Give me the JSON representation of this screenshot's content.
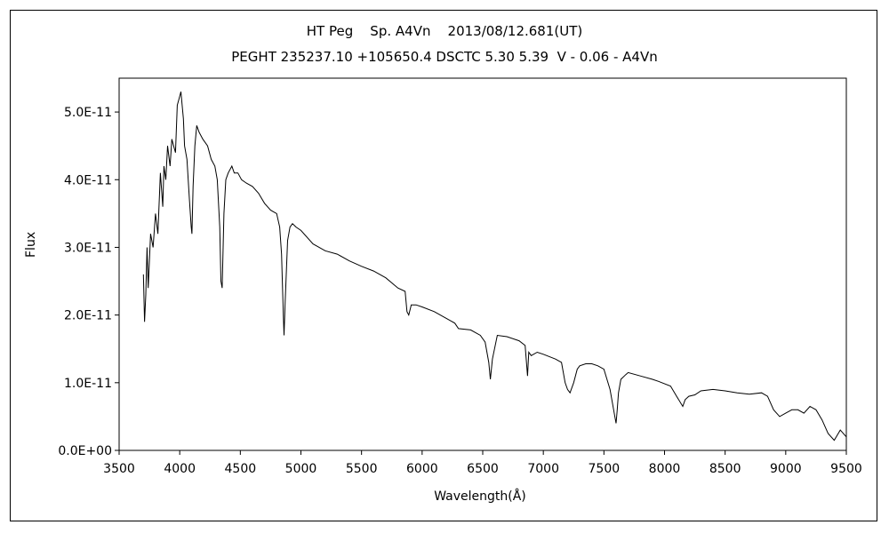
{
  "chart_data": {
    "type": "line",
    "title": "HT Peg    Sp. A4Vn    2013/08/12.681(UT)",
    "subtitle": "PEGHT 235237.10 +105650.4 DSCTC 5.30 5.39  V - 0.06 - A4Vn",
    "xlabel": "Wavelength(Å)",
    "ylabel": "Flux",
    "xlim": [
      3500,
      9500
    ],
    "ylim": [
      0,
      5.5e-11
    ],
    "x_ticks": [
      3500,
      4000,
      4500,
      5000,
      5500,
      6000,
      6500,
      7000,
      7500,
      8000,
      8500,
      9000,
      9500
    ],
    "x_tick_labels": [
      "3500",
      "4000",
      "4500",
      "5000",
      "5500",
      "6000",
      "6500",
      "7000",
      "7500",
      "8000",
      "8500",
      "9000",
      "9500"
    ],
    "y_ticks": [
      0,
      1e-11,
      2e-11,
      3e-11,
      4e-11,
      5e-11
    ],
    "y_tick_labels": [
      "0.0E+00",
      "1.0E-11",
      "2.0E-11",
      "3.0E-11",
      "4.0E-11",
      "5.0E-11"
    ],
    "grid": false,
    "legend": "none",
    "line_color": "#000000",
    "series": [
      {
        "x": [
          3700,
          3710,
          3720,
          3730,
          3740,
          3760,
          3780,
          3800,
          3820,
          3840,
          3860,
          3870,
          3885,
          3900,
          3920,
          3935,
          3950,
          3965,
          3980,
          3995,
          4010,
          4020,
          4030,
          4040,
          4060,
          4080,
          4095,
          4101,
          4110,
          4125,
          4140,
          4160,
          4190,
          4230,
          4260,
          4290,
          4310,
          4330,
          4340,
          4350,
          4365,
          4380,
          4400,
          4430,
          4450,
          4480,
          4510,
          4550,
          4600,
          4650,
          4700,
          4750,
          4800,
          4825,
          4840,
          4855,
          4861,
          4870,
          4890,
          4910,
          4930,
          4960,
          5000,
          5100,
          5200,
          5300,
          5400,
          5500,
          5600,
          5700,
          5800,
          5860,
          5875,
          5890,
          5910,
          5950,
          6000,
          6100,
          6200,
          6270,
          6300,
          6400,
          6480,
          6520,
          6550,
          6563,
          6580,
          6620,
          6700,
          6800,
          6850,
          6870,
          6880,
          6900,
          6950,
          7000,
          7100,
          7150,
          7180,
          7200,
          7220,
          7250,
          7280,
          7300,
          7350,
          7400,
          7450,
          7500,
          7550,
          7590,
          7600,
          7610,
          7620,
          7640,
          7680,
          7700,
          7800,
          7900,
          7950,
          8050,
          8100,
          8150,
          8170,
          8200,
          8250,
          8300,
          8400,
          8500,
          8600,
          8700,
          8800,
          8850,
          8900,
          8950,
          9000,
          9050,
          9100,
          9150,
          9200,
          9250,
          9300,
          9350,
          9400,
          9450,
          9500
        ],
        "y": [
          2.6e-11,
          1.9e-11,
          2.3e-11,
          3e-11,
          2.4e-11,
          3.2e-11,
          3e-11,
          3.5e-11,
          3.2e-11,
          4.1e-11,
          3.6e-11,
          4.2e-11,
          4e-11,
          4.5e-11,
          4.2e-11,
          4.6e-11,
          4.5e-11,
          4.4e-11,
          5.1e-11,
          5.2e-11,
          5.3e-11,
          5.1e-11,
          4.9e-11,
          4.5e-11,
          4.3e-11,
          3.7e-11,
          3.3e-11,
          3.2e-11,
          3.9e-11,
          4.5e-11,
          4.8e-11,
          4.7e-11,
          4.6e-11,
          4.5e-11,
          4.3e-11,
          4.2e-11,
          4e-11,
          3.3e-11,
          2.5e-11,
          2.4e-11,
          3.5e-11,
          4e-11,
          4.1e-11,
          4.2e-11,
          4.1e-11,
          4.1e-11,
          4e-11,
          3.95e-11,
          3.9e-11,
          3.8e-11,
          3.65e-11,
          3.55e-11,
          3.5e-11,
          3.3e-11,
          2.9e-11,
          2e-11,
          1.7e-11,
          2.2e-11,
          3.1e-11,
          3.3e-11,
          3.35e-11,
          3.3e-11,
          3.25e-11,
          3.05e-11,
          2.95e-11,
          2.9e-11,
          2.8e-11,
          2.72e-11,
          2.65e-11,
          2.55e-11,
          2.4e-11,
          2.35e-11,
          2.05e-11,
          2e-11,
          2.15e-11,
          2.15e-11,
          2.12e-11,
          2.05e-11,
          1.95e-11,
          1.88e-11,
          1.8e-11,
          1.78e-11,
          1.7e-11,
          1.6e-11,
          1.3e-11,
          1.05e-11,
          1.35e-11,
          1.7e-11,
          1.68e-11,
          1.62e-11,
          1.55e-11,
          1.1e-11,
          1.45e-11,
          1.4e-11,
          1.45e-11,
          1.42e-11,
          1.35e-11,
          1.3e-11,
          1e-11,
          9e-12,
          8.5e-12,
          1e-11,
          1.2e-11,
          1.25e-11,
          1.28e-11,
          1.28e-11,
          1.25e-11,
          1.2e-11,
          9e-12,
          5e-12,
          4e-12,
          6e-12,
          8.5e-12,
          1.05e-11,
          1.12e-11,
          1.15e-11,
          1.1e-11,
          1.05e-11,
          1.02e-11,
          9.5e-12,
          8e-12,
          6.5e-12,
          7.5e-12,
          8e-12,
          8.2e-12,
          8.8e-12,
          9e-12,
          8.8e-12,
          8.5e-12,
          8.3e-12,
          8.5e-12,
          8e-12,
          6e-12,
          5e-12,
          5.5e-12,
          6e-12,
          6e-12,
          5.5e-12,
          6.5e-12,
          6e-12,
          4.5e-12,
          2.5e-12,
          1.5e-12,
          3e-12,
          2e-12
        ]
      }
    ]
  }
}
